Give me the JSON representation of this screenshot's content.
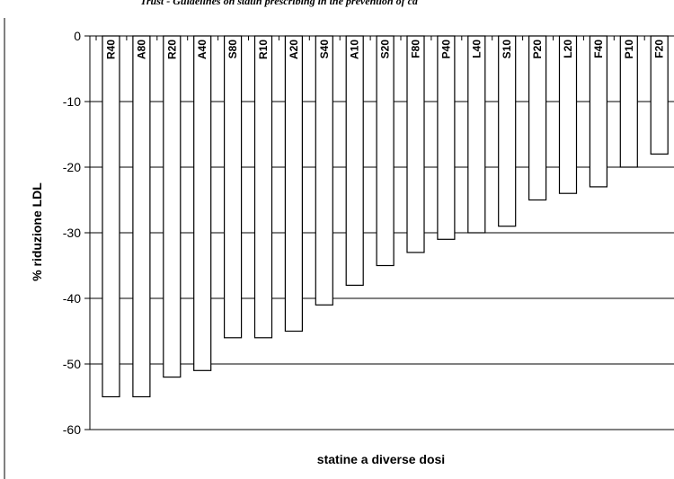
{
  "chart_data": {
    "type": "bar",
    "title": "Trust - Guidelines on statin prescribing in the prevention of ca",
    "xlabel": "statine a diverse dosi",
    "ylabel": "% riduzione LDL",
    "ylim": [
      -60,
      0
    ],
    "yticks": [
      "0",
      "-10",
      "-20",
      "-30",
      "-40",
      "-50",
      "-60"
    ],
    "ytick_values": [
      0,
      -10,
      -20,
      -30,
      -40,
      -50,
      -60
    ],
    "grid": true,
    "categories": [
      "R40",
      "A80",
      "R20",
      "A40",
      "S80",
      "R10",
      "A20",
      "S40",
      "A10",
      "S20",
      "F80",
      "P40",
      "L40",
      "S10",
      "P20",
      "L20",
      "F40",
      "P10",
      "F20"
    ],
    "values": [
      -55,
      -55,
      -52,
      -51,
      -46,
      -46,
      -45,
      -41,
      -38,
      -35,
      -33,
      -31,
      -30,
      -29,
      -25,
      -24,
      -23,
      -20,
      -18
    ]
  },
  "colors": {
    "bar_fill": "#ffffff",
    "bar_stroke": "#000000",
    "grid": "#000000",
    "background": "#ffffff"
  }
}
